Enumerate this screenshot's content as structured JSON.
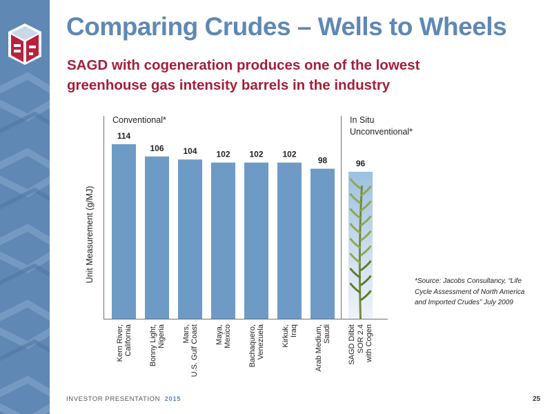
{
  "title": "Comparing Crudes – Wells to Wheels",
  "subtitle": "SAGD with cogeneration produces one of the lowest greenhouse gas intensity barrels in the industry",
  "colors": {
    "accent": "#5f88b4",
    "subtitle": "#a31f3a",
    "bar": "#6d9bc5"
  },
  "chart_data": {
    "type": "bar",
    "categories": [
      "Kern River,\nCalifornia",
      "Bonny Light,\nNigeria",
      "Mars,\nU.S. Gulf Coast",
      "Maya,\nMexico",
      "Bachaquero,\nVenezuela",
      "Kirkuk,\nIraq",
      "Arab Medium,\nSaudi",
      "SAGD Dilbit\nSOR 2.4\nwith Cogen"
    ],
    "values": [
      114,
      106,
      104,
      102,
      102,
      102,
      98,
      96
    ],
    "value_labels": [
      "114",
      "106",
      "104",
      "102",
      "102",
      "102",
      "98",
      "96"
    ],
    "groups": [
      {
        "label": "Conventional*",
        "categories": 7
      },
      {
        "label": "In Situ\nUnconventional*",
        "categories": 1
      }
    ],
    "ylabel": "Unit Measurement (g/MJ)",
    "xlabel": "",
    "ylim": [
      0,
      114
    ],
    "grid": false,
    "legend": "none",
    "last_bar_fill": "plant-image",
    "annotation": "*Source: Jacobs Consultancy, “Life Cycle Assessment of North America and Imported Crudes” July 2009"
  },
  "footer": {
    "label": "INVESTOR PRESENTATION",
    "year": "2015",
    "page": "25"
  }
}
